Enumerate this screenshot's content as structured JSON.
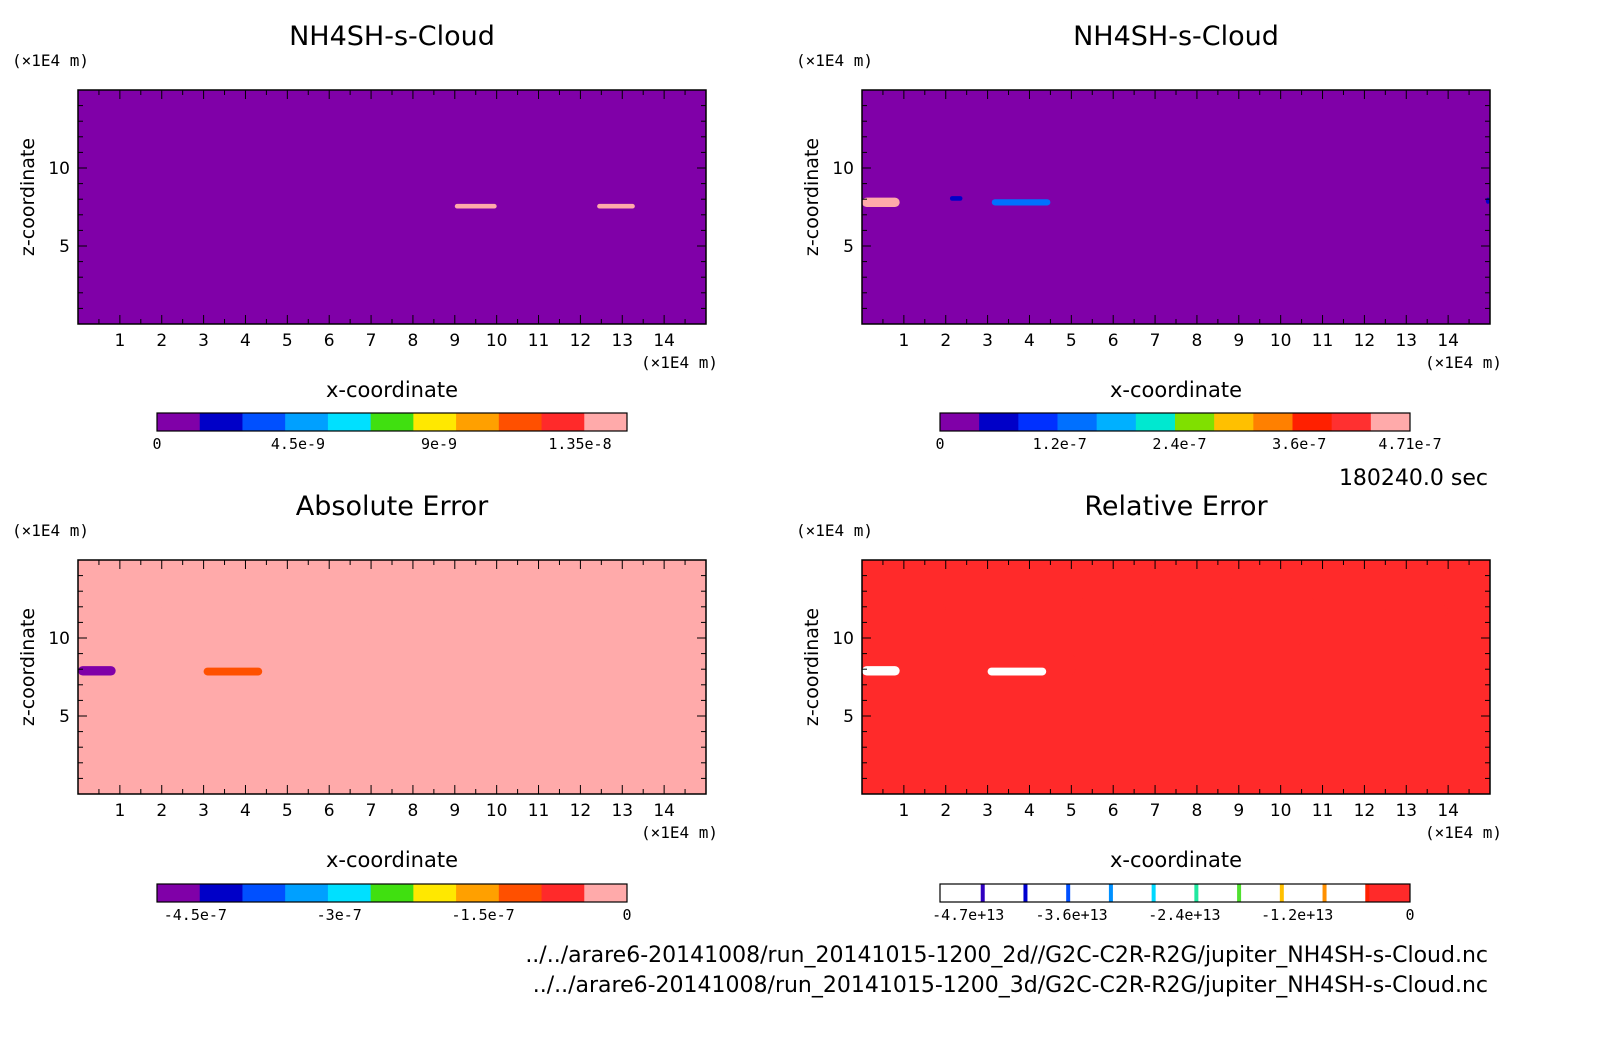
{
  "timestamp": "180240.0 sec",
  "files": [
    "../../arare6-20141008/run_20141015-1200_2d//G2C-C2R-R2G/jupiter_NH4SH-s-Cloud.nc",
    "../../arare6-20141008/run_20141015-1200_3d/G2C-C2R-R2G/jupiter_NH4SH-s-Cloud.nc"
  ],
  "colors": {
    "background": "#a02fbf",
    "purple": "#8000a8",
    "pink": "#ffaaaa",
    "red": "#ff2a2a"
  },
  "chart_data": [
    {
      "type": "heatmap",
      "title": "NH4SH-s-Cloud",
      "xlabel": "x-coordinate",
      "ylabel": "z-coordinate",
      "x_unit": "(×1E4 m)",
      "y_unit": "(×1E4 m)",
      "xlim": [
        0,
        15
      ],
      "ylim": [
        0,
        15
      ],
      "x_ticks": [
        "1",
        "2",
        "3",
        "4",
        "5",
        "6",
        "7",
        "8",
        "9",
        "10",
        "11",
        "12",
        "13",
        "14"
      ],
      "y_ticks": [
        "5",
        "10"
      ],
      "background_level": 0,
      "features": [
        {
          "x": [
            9.0,
            10.0
          ],
          "z": [
            7.4,
            7.7
          ],
          "value": 1.4e-08
        },
        {
          "x": [
            12.4,
            13.3
          ],
          "z": [
            7.4,
            7.7
          ],
          "value": 1.4e-08
        }
      ],
      "colorbar": {
        "colors": [
          "#8000a8",
          "#0000c8",
          "#0050ff",
          "#00a0ff",
          "#00e0ff",
          "#40e010",
          "#ffe800",
          "#ffa000",
          "#ff5000",
          "#ff2a2a",
          "#ffaaaa"
        ],
        "labels": [
          "0",
          "4.5e-9",
          "9e-9",
          "1.35e-8"
        ],
        "label_positions": [
          0,
          4.5e-09,
          9e-09,
          1.35e-08
        ],
        "range": [
          0,
          1.5e-08
        ]
      }
    },
    {
      "type": "heatmap",
      "title": "NH4SH-s-Cloud",
      "xlabel": "x-coordinate",
      "ylabel": "z-coordinate",
      "x_unit": "(×1E4 m)",
      "y_unit": "(×1E4 m)",
      "xlim": [
        0,
        15
      ],
      "ylim": [
        0,
        15
      ],
      "x_ticks": [
        "1",
        "2",
        "3",
        "4",
        "5",
        "6",
        "7",
        "8",
        "9",
        "10",
        "11",
        "12",
        "13",
        "14"
      ],
      "y_ticks": [
        "5",
        "10"
      ],
      "background_level": 0,
      "features": [
        {
          "x": [
            0.0,
            0.9
          ],
          "z": [
            7.5,
            8.1
          ],
          "value": 4.7e-07
        },
        {
          "x": [
            2.1,
            2.4
          ],
          "z": [
            7.9,
            8.2
          ],
          "value": 5e-08
        },
        {
          "x": [
            3.1,
            4.5
          ],
          "z": [
            7.6,
            8.0
          ],
          "value": 1.2e-07
        },
        {
          "x": [
            14.9,
            15.0
          ],
          "z": [
            7.7,
            8.1
          ],
          "value": 5e-08
        }
      ],
      "colorbar": {
        "colors": [
          "#8000a8",
          "#0000c8",
          "#0030ff",
          "#0070ff",
          "#00b0ff",
          "#00e8d0",
          "#80e000",
          "#ffc000",
          "#ff8000",
          "#ff2000",
          "#ff3030",
          "#ffaaaa"
        ],
        "labels": [
          "0",
          "1.2e-7",
          "2.4e-7",
          "3.6e-7",
          "4.71e-7"
        ],
        "label_positions": [
          0,
          1.2e-07,
          2.4e-07,
          3.6e-07,
          4.71e-07
        ],
        "range": [
          0,
          4.71e-07
        ]
      }
    },
    {
      "type": "heatmap",
      "title": "Absolute Error",
      "xlabel": "x-coordinate",
      "ylabel": "z-coordinate",
      "x_unit": "(×1E4 m)",
      "y_unit": "(×1E4 m)",
      "xlim": [
        0,
        15
      ],
      "ylim": [
        0,
        15
      ],
      "x_ticks": [
        "1",
        "2",
        "3",
        "4",
        "5",
        "6",
        "7",
        "8",
        "9",
        "10",
        "11",
        "12",
        "13",
        "14"
      ],
      "y_ticks": [
        "5",
        "10"
      ],
      "background_level": 0,
      "features": [
        {
          "x": [
            0.0,
            2.0
          ],
          "z": [
            11.6,
            12.2
          ],
          "value": -4e-08
        },
        {
          "x": [
            2.2,
            3.5
          ],
          "z": [
            12.1,
            12.5
          ],
          "value": -4e-08
        },
        {
          "x": [
            4.1,
            5.3
          ],
          "z": [
            12.0,
            12.6
          ],
          "value": -4e-08
        },
        {
          "x": [
            8.8,
            10.8
          ],
          "z": [
            12.1,
            12.6
          ],
          "value": -4e-08
        },
        {
          "x": [
            12.5,
            14.0
          ],
          "z": [
            11.4,
            12.1
          ],
          "value": -4e-08
        },
        {
          "x": [
            6.9,
            10.5
          ],
          "z": [
            9.5,
            11.0
          ],
          "value": -4e-08
        },
        {
          "x": [
            0.0,
            5.1
          ],
          "z": [
            7.6,
            9.0
          ],
          "value": -4e-08
        },
        {
          "x": [
            0.0,
            0.9
          ],
          "z": [
            7.6,
            8.2
          ],
          "value": -4.5e-07
        },
        {
          "x": [
            3.0,
            4.4
          ],
          "z": [
            7.6,
            8.1
          ],
          "value": -1.2e-07
        },
        {
          "x": [
            11.9,
            13.5
          ],
          "z": [
            8.8,
            9.2
          ],
          "value": -4e-08
        },
        {
          "x": [
            14.3,
            15.0
          ],
          "z": [
            8.3,
            9.0
          ],
          "value": -4e-08
        }
      ],
      "colorbar": {
        "colors": [
          "#8000a8",
          "#0000c8",
          "#0050ff",
          "#00a0ff",
          "#00e0ff",
          "#40e010",
          "#ffe800",
          "#ffa000",
          "#ff5000",
          "#ff2a2a",
          "#ffaaaa"
        ],
        "labels": [
          "-4.5e-7",
          "-3e-7",
          "-1.5e-7",
          "0"
        ],
        "label_positions": [
          -4.5e-07,
          -3e-07,
          -1.5e-07,
          0
        ],
        "range": [
          -4.9e-07,
          0
        ]
      }
    },
    {
      "type": "heatmap",
      "title": "Relative Error",
      "xlabel": "x-coordinate",
      "ylabel": "z-coordinate",
      "x_unit": "(×1E4 m)",
      "y_unit": "(×1E4 m)",
      "xlim": [
        0,
        15
      ],
      "ylim": [
        0,
        15
      ],
      "x_ticks": [
        "1",
        "2",
        "3",
        "4",
        "5",
        "6",
        "7",
        "8",
        "9",
        "10",
        "11",
        "12",
        "13",
        "14"
      ],
      "y_ticks": [
        "5",
        "10"
      ],
      "background_level": 0,
      "features": [
        {
          "x": [
            0.0,
            2.0
          ],
          "z": [
            11.6,
            12.2
          ],
          "value": -2000000000000.0
        },
        {
          "x": [
            2.2,
            3.5
          ],
          "z": [
            12.1,
            12.5
          ],
          "value": -2000000000000.0
        },
        {
          "x": [
            4.1,
            5.3
          ],
          "z": [
            12.0,
            12.6
          ],
          "value": -2000000000000.0
        },
        {
          "x": [
            8.8,
            10.8
          ],
          "z": [
            12.1,
            12.6
          ],
          "value": -2000000000000.0
        },
        {
          "x": [
            12.5,
            14.0
          ],
          "z": [
            11.4,
            12.1
          ],
          "value": -2000000000000.0
        },
        {
          "x": [
            6.9,
            10.5
          ],
          "z": [
            9.5,
            11.0
          ],
          "value": -2000000000000.0
        },
        {
          "x": [
            0.0,
            5.1
          ],
          "z": [
            7.6,
            9.0
          ],
          "value": -2000000000000.0
        },
        {
          "x": [
            0.0,
            0.9
          ],
          "z": [
            7.6,
            8.2
          ],
          "value": -47000000000000.0
        },
        {
          "x": [
            3.0,
            4.4
          ],
          "z": [
            7.6,
            8.1
          ],
          "value": -12000000000000.0
        },
        {
          "x": [
            11.9,
            13.5
          ],
          "z": [
            8.8,
            9.2
          ],
          "value": -2000000000000.0
        },
        {
          "x": [
            14.3,
            15.0
          ],
          "z": [
            8.3,
            9.0
          ],
          "value": -2000000000000.0
        }
      ],
      "colorbar": {
        "colors": [
          "#ffffff",
          "#ffffff",
          "#ffffff",
          "#ffffff",
          "#ffffff",
          "#ffffff",
          "#ffffff",
          "#ffffff",
          "#ffffff",
          "#ffffff",
          "#ff2a2a"
        ],
        "divider_colors": [
          "#3000c0",
          "#0000d0",
          "#0050ff",
          "#0090ff",
          "#00d8ff",
          "#20e8a0",
          "#50e030",
          "#ffc000",
          "#ff9000",
          "#ff2000"
        ],
        "labels": [
          "-4.7e+13",
          "-3.6e+13",
          "-2.4e+13",
          "-1.2e+13",
          "0"
        ],
        "label_positions": [
          -47000000000000.0,
          -36000000000000.0,
          -24000000000000.0,
          -12000000000000.0,
          0
        ],
        "range": [
          -50000000000000.0,
          0
        ]
      }
    }
  ]
}
